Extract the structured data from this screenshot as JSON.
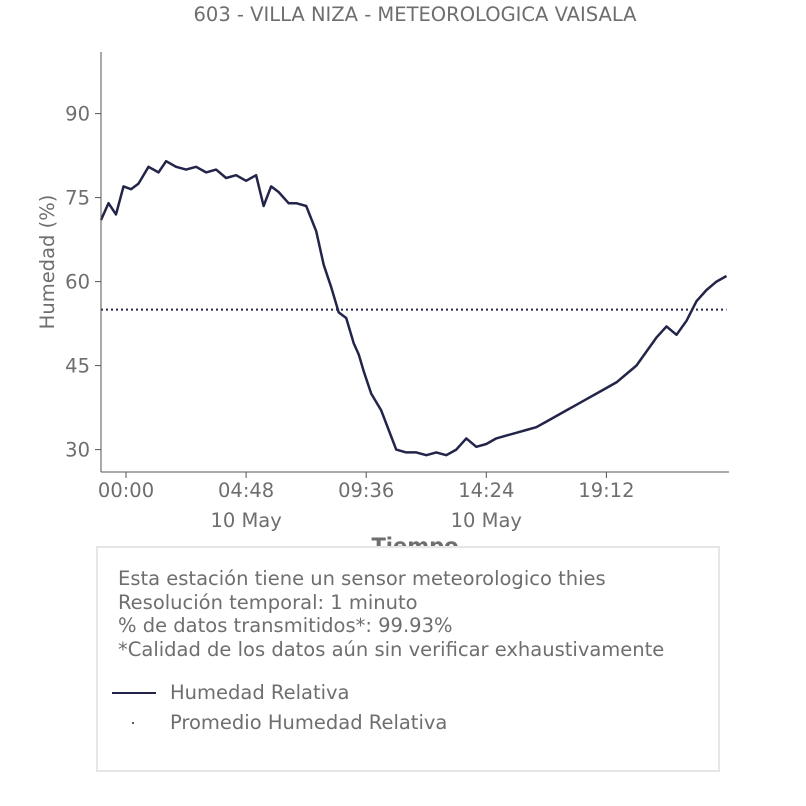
{
  "chart_data": {
    "type": "line",
    "title": "603 - VILLA NIZA - METEOROLOGICA VAISALA",
    "xlabel": "Tiempo",
    "ylabel": "Humedad (%)",
    "x_unit": "hours, 10 May",
    "xlim": [
      -1.0,
      24.1
    ],
    "ylim": [
      26,
      101
    ],
    "yticks": [
      90,
      75,
      60,
      45,
      30
    ],
    "xticks": [
      {
        "value": 0.0,
        "label": "00:00",
        "sublabel": ""
      },
      {
        "value": 4.8,
        "label": "04:48",
        "sublabel": "10 May"
      },
      {
        "value": 9.6,
        "label": "09:36",
        "sublabel": ""
      },
      {
        "value": 14.4,
        "label": "14:24",
        "sublabel": "10 May"
      },
      {
        "value": 19.2,
        "label": "19:12",
        "sublabel": ""
      }
    ],
    "series": [
      {
        "name": "Humedad Relativa",
        "color": "#23244a",
        "style": "solid",
        "x": [
          -1.0,
          -0.7,
          -0.4,
          -0.1,
          0.2,
          0.5,
          0.9,
          1.3,
          1.6,
          2.0,
          2.4,
          2.8,
          3.2,
          3.6,
          4.0,
          4.4,
          4.8,
          5.2,
          5.5,
          5.8,
          6.1,
          6.5,
          6.8,
          7.2,
          7.6,
          7.9,
          8.2,
          8.5,
          8.8,
          9.1,
          9.3,
          9.5,
          9.8,
          10.2,
          10.5,
          10.8,
          11.2,
          11.6,
          12.0,
          12.4,
          12.8,
          13.2,
          13.6,
          14.0,
          14.4,
          14.8,
          15.2,
          15.6,
          16.0,
          16.4,
          16.8,
          17.2,
          17.6,
          18.0,
          18.4,
          18.8,
          19.2,
          19.6,
          20.0,
          20.4,
          20.8,
          21.2,
          21.6,
          22.0,
          22.4,
          22.8,
          23.2,
          23.6,
          24.0
        ],
        "y": [
          71,
          74,
          72,
          77,
          76.5,
          77.5,
          80.5,
          79.5,
          81.5,
          80.5,
          80,
          80.5,
          79.5,
          80,
          78.5,
          79,
          78,
          79,
          73.5,
          77,
          76,
          74,
          74,
          73.5,
          69,
          63,
          59,
          54.5,
          53.5,
          49,
          47,
          44,
          40,
          37,
          33.5,
          30,
          29.5,
          29.5,
          29,
          29.5,
          29,
          30,
          32,
          30.5,
          31,
          32,
          32.5,
          33,
          33.5,
          34,
          35,
          36,
          37,
          38,
          39,
          40,
          41,
          42,
          43.5,
          45,
          47.5,
          50,
          52,
          50.5,
          53,
          56.5,
          58.5,
          60,
          61
        ]
      },
      {
        "name": "Promedio Humedad Relativa",
        "color": "#23244a",
        "style": "dotted",
        "x": [
          -1.0,
          24.0
        ],
        "y": [
          55,
          55
        ]
      }
    ],
    "legend_position": "bottom"
  },
  "info": {
    "lines": [
      "Esta estación tiene un sensor meteorologico thies",
      "Resolución temporal: 1 minuto",
      "% de datos transmitidos*: 99.93%",
      "*Calidad de los datos aún sin verificar exhaustivamente"
    ]
  },
  "colors": {
    "series": "#23244a",
    "text": "#6e6e6e",
    "axis": "#555555",
    "box_border": "#e6e6e6"
  }
}
